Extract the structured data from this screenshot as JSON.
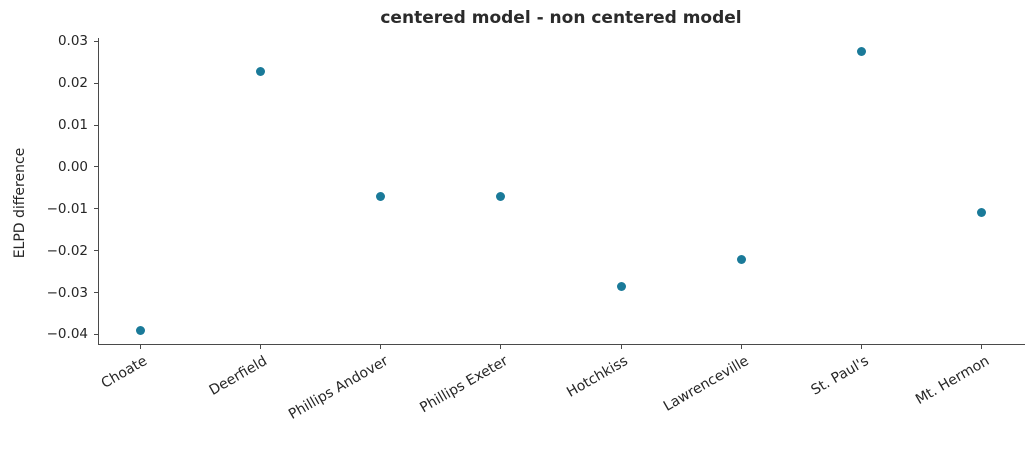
{
  "chart_data": {
    "type": "scatter",
    "title": "centered model - non centered model",
    "xlabel": "",
    "ylabel": "ELPD difference",
    "categories": [
      "Choate",
      "Deerfield",
      "Phillips Andover",
      "Phillips Exeter",
      "Hotchkiss",
      "Lawrenceville",
      "St. Paul's",
      "Mt. Hermon"
    ],
    "values": [
      -0.039,
      0.0227,
      -0.007,
      -0.007,
      -0.0285,
      -0.022,
      0.0275,
      -0.011
    ],
    "ylim": [
      -0.0423,
      0.0308
    ],
    "yticks": [
      0.03,
      0.02,
      0.01,
      0.0,
      -0.01,
      -0.02,
      -0.03,
      -0.04
    ],
    "ytick_labels": [
      "0.03",
      "0.02",
      "0.01",
      "0.00",
      "−0.01",
      "−0.02",
      "−0.03",
      "−0.04"
    ],
    "xtick_rotation_deg": 30,
    "grid": false,
    "legend": "none",
    "marker": "circle",
    "marker_color": "#1a7a99",
    "spine_color": "#4a4a4a",
    "text_color": "#262626",
    "spines_visible": [
      "left",
      "bottom"
    ]
  }
}
